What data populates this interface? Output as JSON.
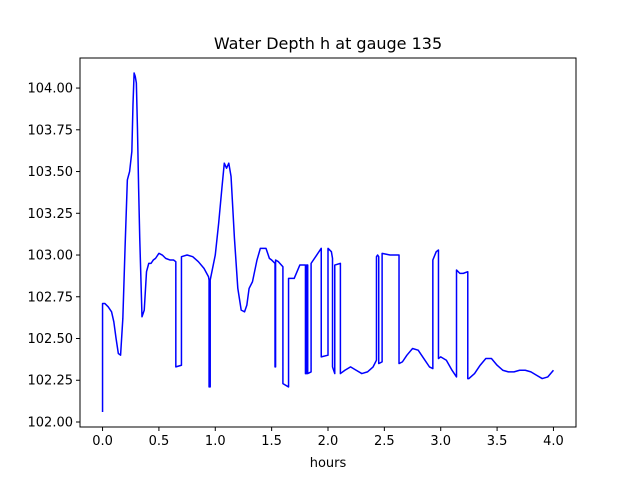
{
  "chart_data": {
    "type": "line",
    "title": "Water Depth h at gauge 135",
    "xlabel": "hours",
    "ylabel": "",
    "xlim": [
      -0.2,
      4.2
    ],
    "ylim": [
      101.97,
      104.18
    ],
    "x_ticks": [
      0.0,
      0.5,
      1.0,
      1.5,
      2.0,
      2.5,
      3.0,
      3.5,
      4.0
    ],
    "x_tick_labels": [
      "0.0",
      "0.5",
      "1.0",
      "1.5",
      "2.0",
      "2.5",
      "3.0",
      "3.5",
      "4.0"
    ],
    "y_ticks": [
      102.0,
      102.25,
      102.5,
      102.75,
      103.0,
      103.25,
      103.5,
      103.75,
      104.0
    ],
    "y_tick_labels": [
      "102.00",
      "102.25",
      "102.50",
      "102.75",
      "103.00",
      "103.25",
      "103.50",
      "103.75",
      "104.00"
    ],
    "grid": false,
    "series": [
      {
        "color": "#0000ff",
        "x": [
          0.0,
          0.0,
          0.02,
          0.05,
          0.08,
          0.1,
          0.12,
          0.14,
          0.16,
          0.18,
          0.2,
          0.22,
          0.24,
          0.26,
          0.27,
          0.28,
          0.29,
          0.3,
          0.31,
          0.32,
          0.33,
          0.35,
          0.37,
          0.39,
          0.41,
          0.43,
          0.45,
          0.47,
          0.5,
          0.53,
          0.56,
          0.6,
          0.63,
          0.65,
          0.65,
          0.7,
          0.7,
          0.75,
          0.8,
          0.85,
          0.9,
          0.94,
          0.945,
          0.945,
          0.955,
          0.955,
          1.0,
          1.03,
          1.06,
          1.08,
          1.1,
          1.12,
          1.14,
          1.17,
          1.2,
          1.23,
          1.26,
          1.28,
          1.3,
          1.33,
          1.37,
          1.4,
          1.43,
          1.45,
          1.48,
          1.5,
          1.53,
          1.53,
          1.535,
          1.535,
          1.56,
          1.6,
          1.6,
          1.65,
          1.65,
          1.7,
          1.75,
          1.8,
          1.8,
          1.81,
          1.81,
          1.82,
          1.82,
          1.85,
          1.85,
          1.9,
          1.94,
          1.94,
          2.0,
          2.0,
          2.03,
          2.04,
          2.04,
          2.06,
          2.06,
          2.11,
          2.11,
          2.15,
          2.2,
          2.25,
          2.3,
          2.35,
          2.4,
          2.43,
          2.43,
          2.44,
          2.45,
          2.45,
          2.48,
          2.48,
          2.55,
          2.6,
          2.63,
          2.63,
          2.66,
          2.7,
          2.75,
          2.8,
          2.85,
          2.9,
          2.93,
          2.93,
          2.96,
          2.98,
          2.98,
          3.0,
          3.05,
          3.1,
          3.14,
          3.14,
          3.17,
          3.2,
          3.24,
          3.24,
          3.25,
          3.3,
          3.35,
          3.4,
          3.45,
          3.5,
          3.55,
          3.6,
          3.65,
          3.7,
          3.75,
          3.8,
          3.85,
          3.9,
          3.95,
          4.0
        ],
        "y": [
          102.06,
          102.71,
          102.71,
          102.69,
          102.66,
          102.6,
          102.5,
          102.41,
          102.4,
          102.62,
          103.05,
          103.45,
          103.5,
          103.62,
          103.9,
          104.09,
          104.07,
          104.03,
          103.75,
          103.4,
          103.1,
          102.63,
          102.67,
          102.9,
          102.95,
          102.95,
          102.97,
          102.98,
          103.01,
          103.0,
          102.98,
          102.97,
          102.97,
          102.96,
          102.33,
          102.34,
          102.99,
          103.0,
          102.99,
          102.96,
          102.92,
          102.87,
          102.85,
          102.21,
          102.21,
          102.85,
          103.0,
          103.19,
          103.41,
          103.55,
          103.52,
          103.55,
          103.47,
          103.1,
          102.8,
          102.67,
          102.66,
          102.7,
          102.8,
          102.84,
          102.97,
          103.04,
          103.04,
          103.04,
          102.98,
          102.97,
          102.95,
          102.33,
          102.33,
          102.97,
          102.96,
          102.93,
          102.23,
          102.21,
          102.86,
          102.86,
          102.94,
          102.94,
          102.29,
          102.29,
          102.94,
          102.94,
          102.29,
          102.3,
          102.95,
          103.0,
          103.04,
          102.39,
          102.4,
          103.04,
          103.02,
          102.98,
          102.33,
          102.29,
          102.94,
          102.95,
          102.29,
          102.31,
          102.33,
          102.31,
          102.29,
          102.3,
          102.33,
          102.37,
          102.99,
          103.0,
          102.99,
          102.35,
          102.36,
          103.01,
          103.0,
          103.0,
          103.0,
          102.35,
          102.36,
          102.4,
          102.44,
          102.43,
          102.38,
          102.33,
          102.32,
          102.97,
          103.02,
          103.03,
          102.38,
          102.39,
          102.37,
          102.31,
          102.27,
          102.91,
          102.89,
          102.89,
          102.9,
          102.26,
          102.26,
          102.29,
          102.34,
          102.38,
          102.38,
          102.34,
          102.31,
          102.3,
          102.3,
          102.31,
          102.31,
          102.3,
          102.28,
          102.26,
          102.27,
          102.31
        ]
      }
    ]
  }
}
